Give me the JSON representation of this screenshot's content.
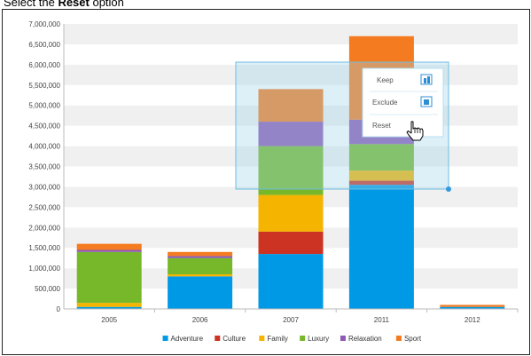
{
  "caption": {
    "prefix": "Select the ",
    "bold": "Reset",
    "suffix": " option"
  },
  "chart_data": {
    "type": "bar",
    "stacked": true,
    "title": "",
    "xlabel": "",
    "ylabel": "",
    "categories": [
      "2005",
      "2006",
      "2007",
      "2011",
      "2012"
    ],
    "ylim": [
      0,
      7000000
    ],
    "yticks": [
      0,
      500000,
      1000000,
      1500000,
      2000000,
      2500000,
      3000000,
      3500000,
      4000000,
      4500000,
      5000000,
      5500000,
      6000000,
      6500000,
      7000000
    ],
    "ytick_labels": [
      "0",
      "500,000",
      "1,000,000",
      "1,500,000",
      "2,000,000",
      "2,500,000",
      "3,000,000",
      "3,500,000",
      "4,000,000",
      "4,500,000",
      "5,000,000",
      "5,500,000",
      "6,000,000",
      "6,500,000",
      "7,000,000"
    ],
    "grid": true,
    "legend_position": "bottom",
    "series": [
      {
        "name": "Adventure",
        "color": "#0099e6",
        "values": [
          50000,
          800000,
          1350000,
          3050000,
          50000
        ]
      },
      {
        "name": "Culture",
        "color": "#cc3322",
        "values": [
          0,
          0,
          550000,
          100000,
          0
        ]
      },
      {
        "name": "Family",
        "color": "#f5b400",
        "values": [
          100000,
          50000,
          900000,
          250000,
          0
        ]
      },
      {
        "name": "Luxury",
        "color": "#77b82a",
        "values": [
          1250000,
          400000,
          1200000,
          650000,
          0
        ]
      },
      {
        "name": "Relaxation",
        "color": "#8e5ab5",
        "values": [
          50000,
          50000,
          600000,
          600000,
          0
        ]
      },
      {
        "name": "Sport",
        "color": "#f47b20",
        "values": [
          150000,
          100000,
          800000,
          2050000,
          50000
        ]
      }
    ]
  },
  "context_menu": {
    "items": [
      {
        "label": "Keep",
        "icon": "keep-icon"
      },
      {
        "label": "Exclude",
        "icon": "exclude-icon"
      },
      {
        "label": "Reset",
        "icon": ""
      }
    ]
  }
}
